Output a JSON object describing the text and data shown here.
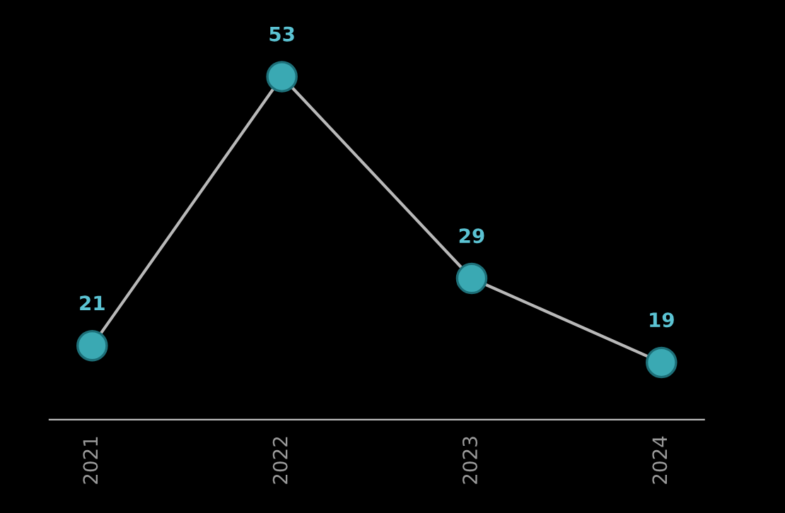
{
  "chart_data": {
    "type": "line",
    "categories": [
      "2021",
      "2022",
      "2023",
      "2024"
    ],
    "series": [
      {
        "color": "#3aa9b3",
        "values": [
          21,
          53,
          29,
          19
        ]
      }
    ],
    "data_labels": true,
    "marker": "circle",
    "line_style": "solid",
    "tick_labels": "x"
  }
}
